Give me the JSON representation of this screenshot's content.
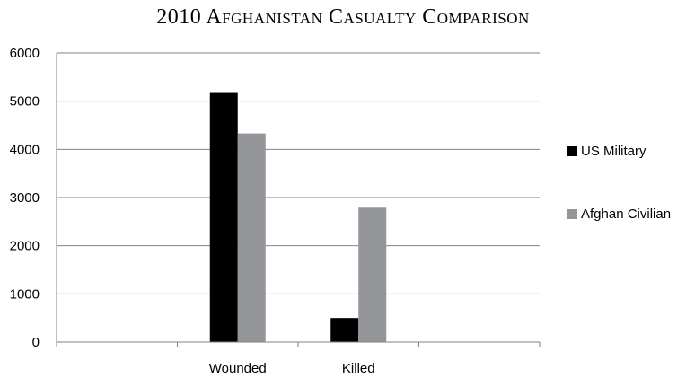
{
  "chart_data": {
    "type": "bar",
    "title": "2010 Afghanistan Casualty Comparison",
    "categories": [
      "",
      "Wounded",
      "Killed",
      ""
    ],
    "series": [
      {
        "name": "US Military",
        "color": "#000000",
        "values": [
          null,
          5170,
          500,
          null
        ]
      },
      {
        "name": "Afghan Civilian",
        "color": "#939598",
        "values": [
          null,
          4330,
          2790,
          null
        ]
      }
    ],
    "yticks": [
      "0",
      "1000",
      "2000",
      "3000",
      "4000",
      "5000",
      "6000"
    ],
    "ylim": [
      0,
      6000
    ],
    "grid": true,
    "legend": "right"
  }
}
